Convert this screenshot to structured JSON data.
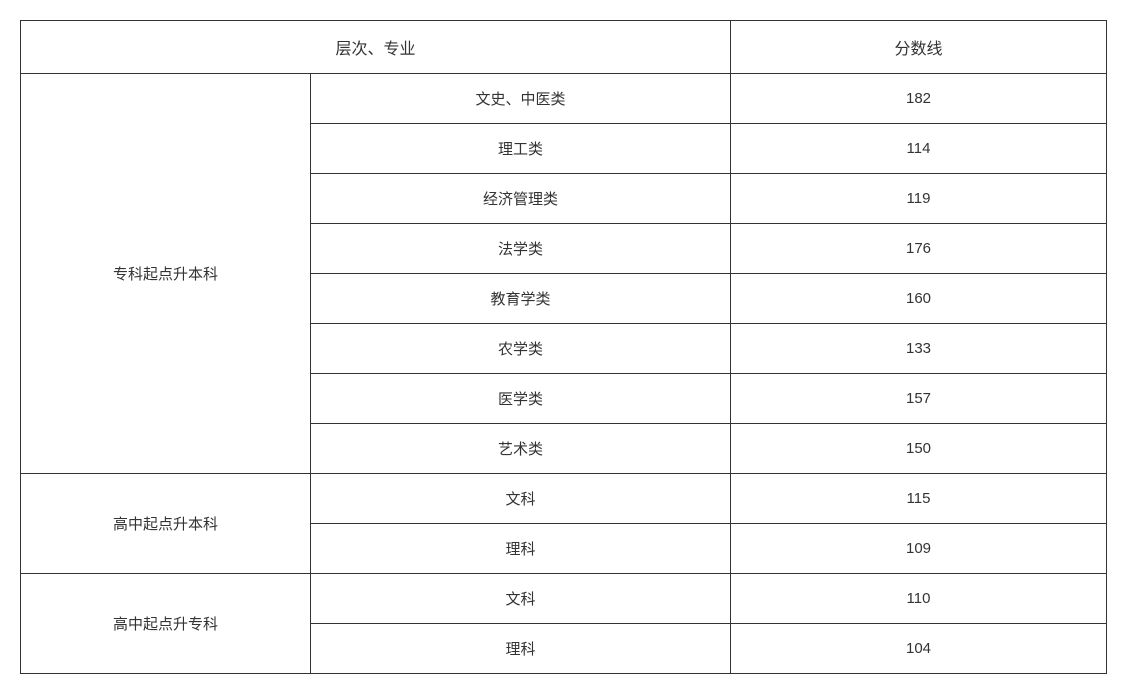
{
  "table": {
    "type": "table",
    "border_color": "#333333",
    "background_color": "#ffffff",
    "text_color": "#333333",
    "header_fontsize": 16,
    "cell_fontsize": 15,
    "columns": {
      "levelMajor": "层次、专业",
      "score": "分数线"
    },
    "col_widths": {
      "level": 290,
      "major": 420,
      "score": 376
    },
    "groups": [
      {
        "level": "专科起点升本科",
        "rows": [
          {
            "major": "文史、中医类",
            "score": "182"
          },
          {
            "major": "理工类",
            "score": "114"
          },
          {
            "major": "经济管理类",
            "score": "119"
          },
          {
            "major": "法学类",
            "score": "176"
          },
          {
            "major": "教育学类",
            "score": "160"
          },
          {
            "major": "农学类",
            "score": "133"
          },
          {
            "major": "医学类",
            "score": "157"
          },
          {
            "major": "艺术类",
            "score": "150"
          }
        ]
      },
      {
        "level": "高中起点升本科",
        "rows": [
          {
            "major": "文科",
            "score": "115"
          },
          {
            "major": "理科",
            "score": "109"
          }
        ]
      },
      {
        "level": "高中起点升专科",
        "rows": [
          {
            "major": "文科",
            "score": "110"
          },
          {
            "major": "理科",
            "score": "104"
          }
        ]
      }
    ]
  }
}
